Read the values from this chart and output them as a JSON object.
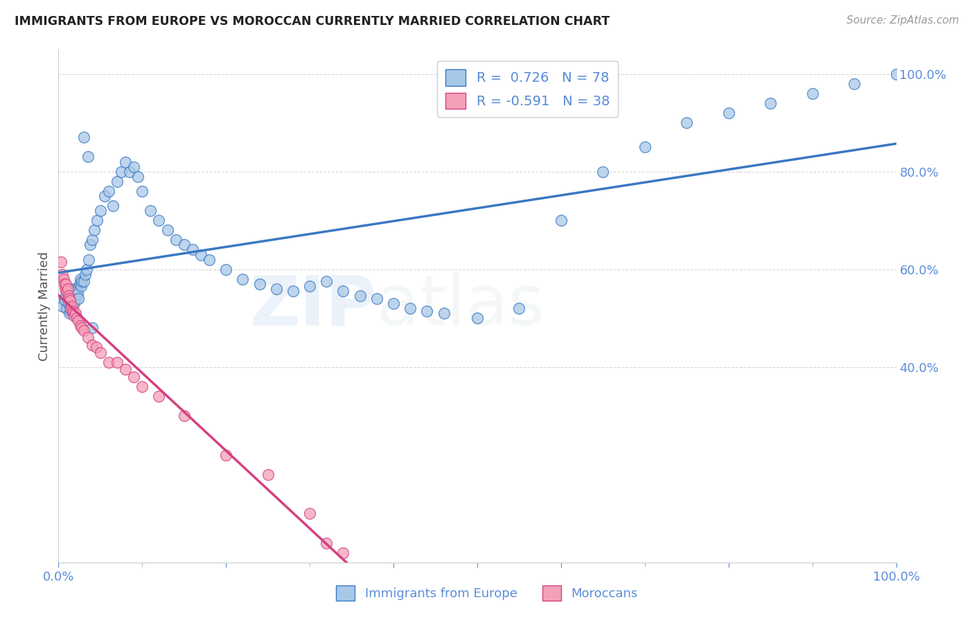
{
  "title": "IMMIGRANTS FROM EUROPE VS MOROCCAN CURRENTLY MARRIED CORRELATION CHART",
  "source": "Source: ZipAtlas.com",
  "ylabel": "Currently Married",
  "blue_R": 0.726,
  "blue_N": 78,
  "pink_R": -0.591,
  "pink_N": 38,
  "blue_color": "#a8c8e8",
  "pink_color": "#f4a0b8",
  "blue_line_color": "#3b78c3",
  "pink_line_color": "#d44080",
  "axis_color": "#5b8dd9",
  "background_color": "#ffffff",
  "grid_color": "#cccccc",
  "xlim": [
    0.0,
    1.0
  ],
  "ylim": [
    0.0,
    1.05
  ],
  "yticks": [
    0.4,
    0.6,
    0.8,
    1.0
  ],
  "ytick_labels": [
    "40.0%",
    "60.0%",
    "80.0%",
    "100.0%"
  ],
  "blue_x": [
    0.005,
    0.007,
    0.008,
    0.009,
    0.01,
    0.011,
    0.012,
    0.013,
    0.014,
    0.015,
    0.016,
    0.017,
    0.018,
    0.019,
    0.02,
    0.021,
    0.022,
    0.023,
    0.024,
    0.025,
    0.026,
    0.027,
    0.028,
    0.03,
    0.032,
    0.034,
    0.036,
    0.038,
    0.04,
    0.043,
    0.046,
    0.05,
    0.055,
    0.06,
    0.065,
    0.07,
    0.075,
    0.08,
    0.085,
    0.09,
    0.095,
    0.1,
    0.11,
    0.12,
    0.13,
    0.14,
    0.15,
    0.16,
    0.17,
    0.18,
    0.2,
    0.22,
    0.24,
    0.26,
    0.28,
    0.3,
    0.32,
    0.34,
    0.36,
    0.38,
    0.4,
    0.42,
    0.44,
    0.46,
    0.5,
    0.55,
    0.6,
    0.65,
    0.7,
    0.75,
    0.8,
    0.85,
    0.9,
    0.95,
    1.0,
    0.03,
    0.035,
    0.04
  ],
  "blue_y": [
    0.525,
    0.54,
    0.535,
    0.545,
    0.52,
    0.55,
    0.53,
    0.51,
    0.525,
    0.515,
    0.545,
    0.56,
    0.555,
    0.53,
    0.54,
    0.56,
    0.555,
    0.55,
    0.54,
    0.57,
    0.58,
    0.565,
    0.575,
    0.575,
    0.59,
    0.6,
    0.62,
    0.65,
    0.66,
    0.68,
    0.7,
    0.72,
    0.75,
    0.76,
    0.73,
    0.78,
    0.8,
    0.82,
    0.8,
    0.81,
    0.79,
    0.76,
    0.72,
    0.7,
    0.68,
    0.66,
    0.65,
    0.64,
    0.63,
    0.62,
    0.6,
    0.58,
    0.57,
    0.56,
    0.555,
    0.565,
    0.575,
    0.555,
    0.545,
    0.54,
    0.53,
    0.52,
    0.515,
    0.51,
    0.5,
    0.52,
    0.7,
    0.8,
    0.85,
    0.9,
    0.92,
    0.94,
    0.96,
    0.98,
    1.0,
    0.87,
    0.83,
    0.48
  ],
  "pink_x": [
    0.003,
    0.005,
    0.006,
    0.007,
    0.008,
    0.009,
    0.01,
    0.011,
    0.012,
    0.013,
    0.014,
    0.015,
    0.016,
    0.017,
    0.018,
    0.019,
    0.02,
    0.022,
    0.024,
    0.026,
    0.028,
    0.03,
    0.035,
    0.04,
    0.045,
    0.05,
    0.06,
    0.07,
    0.08,
    0.09,
    0.1,
    0.12,
    0.15,
    0.2,
    0.25,
    0.3,
    0.32,
    0.34
  ],
  "pink_y": [
    0.615,
    0.59,
    0.58,
    0.57,
    0.56,
    0.57,
    0.555,
    0.56,
    0.545,
    0.54,
    0.535,
    0.52,
    0.525,
    0.515,
    0.51,
    0.505,
    0.51,
    0.5,
    0.495,
    0.485,
    0.48,
    0.475,
    0.46,
    0.445,
    0.44,
    0.43,
    0.41,
    0.41,
    0.395,
    0.38,
    0.36,
    0.34,
    0.3,
    0.22,
    0.18,
    0.1,
    0.04,
    0.02
  ],
  "legend_blue_label": "R =  0.726   N = 78",
  "legend_pink_label": "R = -0.591   N = 38",
  "legend_blue_text": "Immigrants from Europe",
  "legend_pink_text": "Moroccans"
}
